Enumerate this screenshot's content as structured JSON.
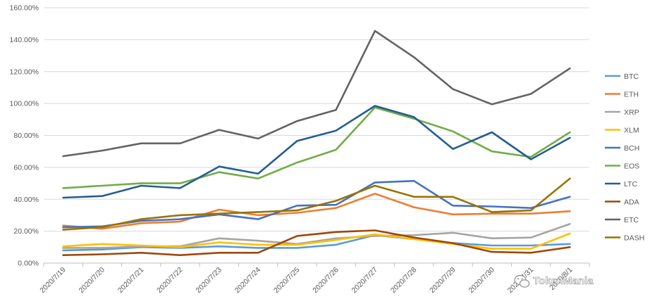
{
  "chart_data": {
    "type": "line",
    "title": "",
    "xlabel": "",
    "ylabel": "",
    "categories": [
      "2020/7/19",
      "2020/7/20",
      "2020/7/21",
      "2020/7/22",
      "2020/7/23",
      "2020/7/24",
      "2020/7/25",
      "2020/7/26",
      "2020/7/27",
      "2020/7/28",
      "2020/7/29",
      "2020/7/30",
      "2020/7/31",
      "2020/8/1"
    ],
    "ylim": [
      0,
      160
    ],
    "ytick_step": 20,
    "ytick_labels": [
      "0.00%",
      "20.00%",
      "40.00%",
      "60.00%",
      "80.00%",
      "100.00%",
      "120.00%",
      "140.00%",
      "160.00%"
    ],
    "grid": "horizontal",
    "legend_position": "right",
    "series": [
      {
        "name": "BTC",
        "color": "#5B9BD5",
        "values": [
          8,
          8.5,
          10,
          9.5,
          10.5,
          9.5,
          9.5,
          11.5,
          17.5,
          15,
          12.5,
          11,
          11,
          12
        ]
      },
      {
        "name": "ETH",
        "color": "#ED7D31",
        "values": [
          23.5,
          21.5,
          25,
          26,
          33.5,
          30,
          31.5,
          34.5,
          43.5,
          35,
          30.5,
          31,
          31,
          32.5
        ]
      },
      {
        "name": "XRP",
        "color": "#A5A5A5",
        "values": [
          9.5,
          9.5,
          10.5,
          10.5,
          15.5,
          14,
          12,
          15.5,
          17,
          17.5,
          19,
          15.5,
          16,
          24.5
        ]
      },
      {
        "name": "XLM",
        "color": "#FFC000",
        "values": [
          10.5,
          12,
          11,
          10,
          13,
          11.5,
          11.5,
          14.5,
          18,
          15,
          12,
          9,
          9,
          18.5
        ]
      },
      {
        "name": "BCH",
        "color": "#4472C4",
        "values": [
          22.5,
          23,
          26.5,
          27.5,
          30.5,
          27.5,
          36,
          36.5,
          50.5,
          51.5,
          36,
          35.5,
          34.5,
          41.5
        ]
      },
      {
        "name": "EOS",
        "color": "#70AD47",
        "values": [
          47,
          48.5,
          50,
          50,
          57,
          53,
          63,
          71,
          97.5,
          90.5,
          82.5,
          70,
          66.5,
          82
        ]
      },
      {
        "name": "LTC",
        "color": "#255E91",
        "values": [
          41,
          42,
          48.5,
          47,
          60.5,
          56,
          76.5,
          83,
          98.5,
          91.5,
          71.5,
          82,
          65,
          78.5
        ]
      },
      {
        "name": "ADA",
        "color": "#9E480E",
        "values": [
          5,
          5.5,
          6.5,
          5,
          6.5,
          6.5,
          17,
          19.5,
          20.5,
          16,
          12.5,
          7,
          6.5,
          10
        ]
      },
      {
        "name": "ETC",
        "color": "#636363",
        "values": [
          67,
          70.5,
          75,
          75,
          83.5,
          78,
          89,
          96,
          145.5,
          129,
          109,
          99.5,
          106,
          122
        ]
      },
      {
        "name": "DASH",
        "color": "#997300",
        "values": [
          21,
          22.5,
          27.5,
          30,
          31,
          32,
          33,
          39,
          48.5,
          41.5,
          41.5,
          32,
          33,
          53
        ]
      }
    ]
  },
  "watermark": {
    "text": "TokenMania",
    "icon": "wechat-icon"
  }
}
